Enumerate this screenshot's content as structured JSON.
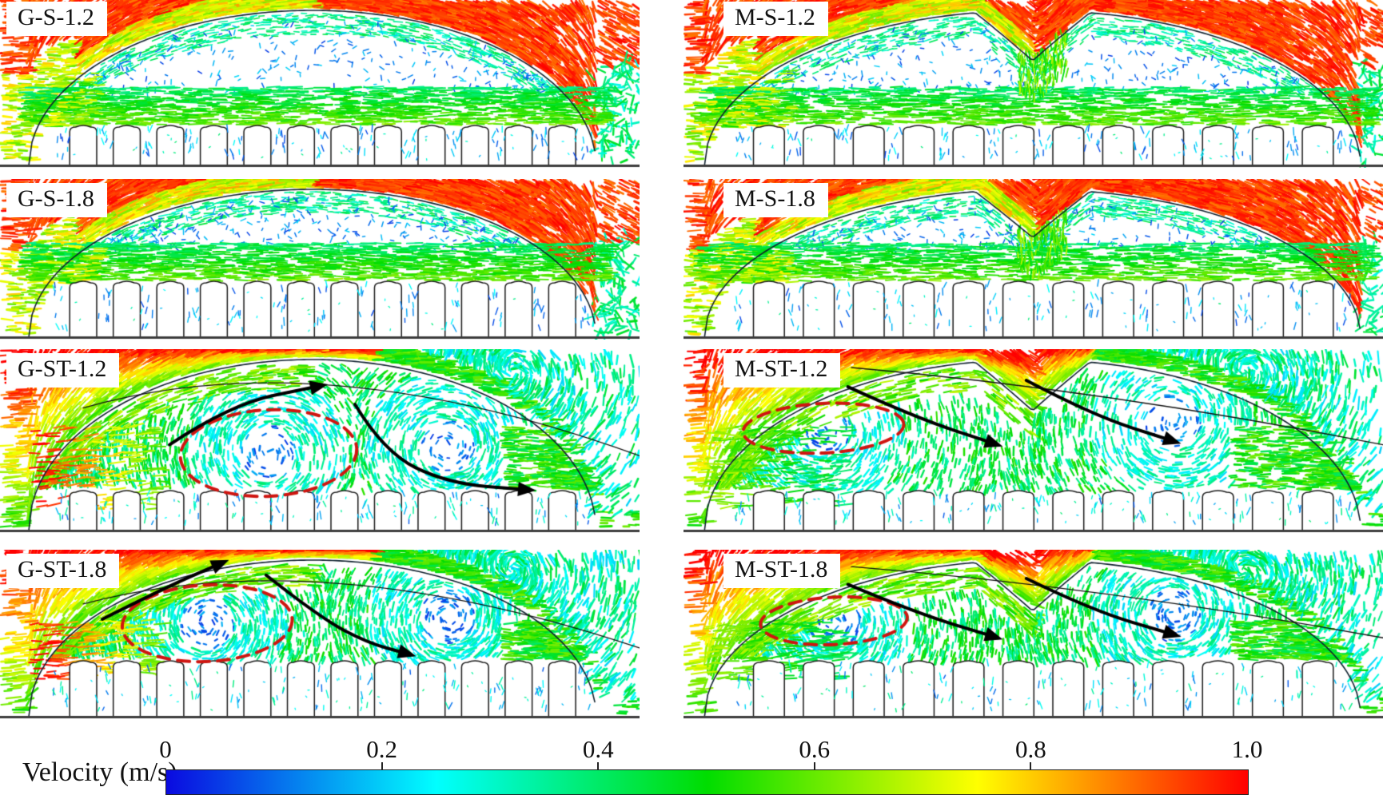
{
  "figure": {
    "panels": [
      {
        "label": "G-S-1.2",
        "row": 0,
        "col": 0,
        "roof": "arch",
        "vent": "S",
        "plant_height_m": 1.2
      },
      {
        "label": "M-S-1.2",
        "row": 0,
        "col": 1,
        "roof": "m-notch",
        "vent": "S",
        "plant_height_m": 1.2
      },
      {
        "label": "G-S-1.8",
        "row": 1,
        "col": 0,
        "roof": "arch",
        "vent": "S",
        "plant_height_m": 1.8
      },
      {
        "label": "M-S-1.8",
        "row": 1,
        "col": 1,
        "roof": "m-notch",
        "vent": "S",
        "plant_height_m": 1.8
      },
      {
        "label": "G-ST-1.2",
        "row": 2,
        "col": 0,
        "roof": "arch",
        "vent": "ST",
        "plant_height_m": 1.2,
        "ann": {
          "ellipse": [
            0.42,
            0.565,
            0.138,
            0.235
          ],
          "arrow1": [
            [
              0.265,
              0.52
            ],
            [
              0.36,
              0.3
            ],
            [
              0.5,
              0.2
            ]
          ],
          "arrow2": [
            [
              0.555,
              0.3
            ],
            [
              0.6,
              0.56
            ],
            [
              0.7,
              0.73
            ],
            [
              0.825,
              0.765
            ]
          ],
          "guide": [
            [
              0.13,
              0.32
            ],
            [
              0.5,
              -0.05
            ],
            [
              1.0,
              0.58
            ]
          ]
        }
      },
      {
        "label": "M-ST-1.2",
        "row": 2,
        "col": 1,
        "roof": "m-notch",
        "vent": "ST",
        "plant_height_m": 1.2,
        "ann": {
          "ellipse": [
            0.2,
            0.43,
            0.115,
            0.135
          ],
          "arrow1": [
            [
              0.235,
              0.205
            ],
            [
              0.33,
              0.37
            ],
            [
              0.445,
              0.515
            ]
          ],
          "arrow2": [
            [
              0.49,
              0.17
            ],
            [
              0.585,
              0.36
            ],
            [
              0.7,
              0.5
            ]
          ],
          "guide": [
            [
              0.24,
              0.1
            ],
            [
              0.6,
              0.22
            ],
            [
              1.0,
              0.52
            ]
          ]
        }
      },
      {
        "label": "G-ST-1.8",
        "row": 3,
        "col": 0,
        "roof": "arch",
        "vent": "ST",
        "plant_height_m": 1.8,
        "ann": {
          "ellipse": [
            0.324,
            0.434,
            0.133,
            0.226
          ],
          "arrow1": [
            [
              0.16,
              0.41
            ],
            [
              0.26,
              0.22
            ],
            [
              0.346,
              0.08
            ]
          ],
          "arrow2": [
            [
              0.416,
              0.15
            ],
            [
              0.5,
              0.4
            ],
            [
              0.575,
              0.55
            ],
            [
              0.638,
              0.615
            ]
          ],
          "guide": [
            [
              0.13,
              0.32
            ],
            [
              0.5,
              -0.05
            ],
            [
              1.0,
              0.58
            ]
          ]
        }
      },
      {
        "label": "M-ST-1.8",
        "row": 3,
        "col": 1,
        "roof": "m-notch",
        "vent": "ST",
        "plant_height_m": 1.8,
        "ann": {
          "ellipse": [
            0.215,
            0.42,
            0.105,
            0.14
          ],
          "arrow1": [
            [
              0.235,
              0.205
            ],
            [
              0.33,
              0.37
            ],
            [
              0.445,
              0.515
            ]
          ],
          "arrow2": [
            [
              0.49,
              0.17
            ],
            [
              0.585,
              0.36
            ],
            [
              0.7,
              0.5
            ]
          ],
          "guide": [
            [
              0.24,
              0.1
            ],
            [
              0.6,
              0.22
            ],
            [
              1.0,
              0.52
            ]
          ]
        }
      }
    ],
    "colorbar": {
      "label": "Velocity (m/s)",
      "ticks": [
        "0",
        "0.2",
        "0.4",
        "0.6",
        "0.8",
        "1.0"
      ],
      "min": 0,
      "max": 1.0,
      "colors": [
        "#0a0ae0",
        "#00ffff",
        "#00dd00",
        "#ffff00",
        "#ff0000"
      ]
    }
  },
  "chart_data": {
    "type": "vector-field",
    "title": "",
    "layout": "4 rows x 2 columns of CFD velocity-vector cross sections of arched greenhouses with 12 crop rows each",
    "panels": [
      {
        "label": "G-S-1.2",
        "roof_profile": "smooth arch",
        "plant_rows": 12,
        "plant_height_m": 1.2,
        "flow": "dense red high-speed layer above roof; green horizontal jet above canopy; slow blue air in interior and between crop rows"
      },
      {
        "label": "M-S-1.2",
        "roof_profile": "arch with central V notch",
        "plant_rows": 12,
        "plant_height_m": 1.2,
        "flow": "dense red layer above roof dipping into notch; green band above canopy; slow blue interior air"
      },
      {
        "label": "G-S-1.8",
        "roof_profile": "smooth arch",
        "plant_rows": 12,
        "plant_height_m": 1.8,
        "flow": "red external layer; green/cyan band above taller canopy; blue interior"
      },
      {
        "label": "M-S-1.8",
        "roof_profile": "arch with central V notch",
        "plant_rows": 12,
        "plant_height_m": 1.8,
        "flow": "red external layer with burst at notch; cyan band above canopy; blue interior"
      },
      {
        "label": "G-ST-1.2",
        "roof_profile": "smooth arch",
        "plant_rows": 12,
        "plant_height_m": 1.2,
        "annotations": [
          "red dashed ellipse marking interior recirculation vortex left of centre",
          "black curved arrow rising along left roof to apex",
          "black curved arrow descending to right above canopy"
        ]
      },
      {
        "label": "M-ST-1.2",
        "roof_profile": "arch with central V notch",
        "plant_rows": 12,
        "plant_height_m": 1.2,
        "annotations": [
          "small red dashed vortex ellipse left of centre",
          "two black arrows descending rightward from roof region"
        ]
      },
      {
        "label": "G-ST-1.8",
        "roof_profile": "smooth arch",
        "plant_rows": 12,
        "plant_height_m": 1.8,
        "annotations": [
          "red dashed vortex ellipse over canopy left of centre",
          "black arrow rising to apex",
          "black arrow curving down to canopy"
        ]
      },
      {
        "label": "M-ST-1.8",
        "roof_profile": "arch with central V notch",
        "plant_rows": 12,
        "plant_height_m": 1.8,
        "annotations": [
          "small red dashed vortex ellipse",
          "two black arrows descending rightward"
        ]
      }
    ],
    "colorbar": {
      "label": "Velocity (m/s)",
      "min": 0,
      "max": 1.0,
      "tick_values": [
        0,
        0.2,
        0.4,
        0.6,
        0.8,
        1.0
      ],
      "colormap": "rainbow: blue #0a0ae0 -> cyan #00ffff -> green #00dd00 -> yellow #ffff00 -> red #ff0000",
      "orientation": "horizontal",
      "position": "bottom"
    }
  }
}
